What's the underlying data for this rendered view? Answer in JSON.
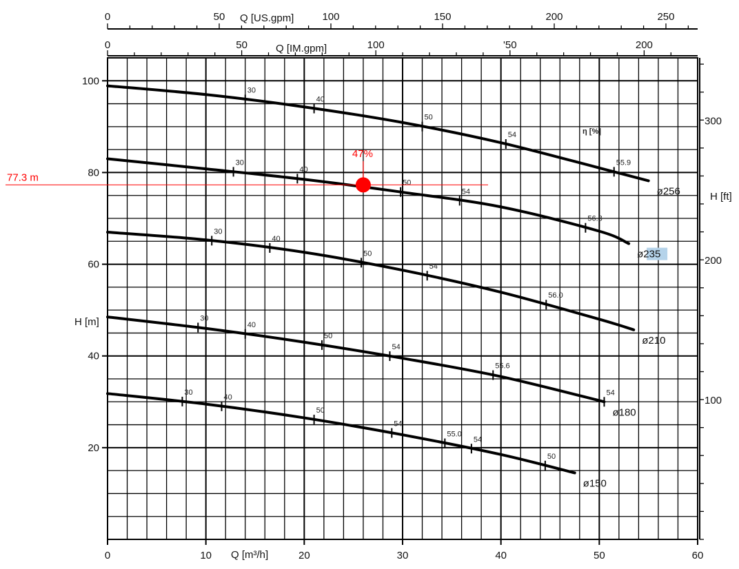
{
  "chart_data": {
    "type": "line",
    "title": "",
    "xlabel": "Q [m³/h]",
    "ylabel": "H [m]",
    "xlim": [
      0,
      60
    ],
    "ylim": [
      0,
      105
    ],
    "grid": true,
    "x_ticks": [
      "0",
      "10",
      "20",
      "30",
      "40",
      "50",
      "60"
    ],
    "y_ticks": [
      "20",
      "40",
      "60",
      "80",
      "100"
    ],
    "top_axis_us": {
      "label": "Q [US.gpm]",
      "ticks": [
        "0",
        "50",
        "100",
        "150",
        "200",
        "250"
      ]
    },
    "top_axis_im": {
      "label": "Q [IM.gpm]",
      "ticks": [
        "0",
        "50",
        "100",
        "'50",
        "200"
      ]
    },
    "right_axis": {
      "label": "H [ft]",
      "ticks": [
        "100",
        "200",
        "300"
      ]
    },
    "efficiency_label": "η [%]",
    "series": [
      {
        "name": "ø256",
        "x": [
          0,
          10,
          20,
          30,
          40,
          50,
          55
        ],
        "y": [
          98.9,
          97.0,
          94.3,
          90.9,
          86.5,
          81.0,
          78.2
        ],
        "eff_points": [
          {
            "x": 14,
            "label": "30"
          },
          {
            "x": 21,
            "label": "40"
          },
          {
            "x": 32,
            "label": "50"
          },
          {
            "x": 40.5,
            "label": "54"
          },
          {
            "x": 51.5,
            "label": "55.9"
          }
        ]
      },
      {
        "name": "ø235",
        "x": [
          0,
          10,
          20,
          30,
          40,
          50,
          53
        ],
        "y": [
          83.0,
          80.8,
          78.5,
          75.7,
          72.5,
          67.2,
          64.5
        ],
        "eff_points": [
          {
            "x": 12.8,
            "label": "30"
          },
          {
            "x": 19.3,
            "label": "40"
          },
          {
            "x": 29.8,
            "label": "50"
          },
          {
            "x": 35.8,
            "label": "54"
          },
          {
            "x": 48.6,
            "label": "56.8"
          }
        ]
      },
      {
        "name": "ø210",
        "x": [
          0,
          10,
          20,
          30,
          40,
          50,
          53.5
        ],
        "y": [
          67.0,
          65.3,
          62.6,
          58.7,
          53.9,
          48.0,
          45.7
        ],
        "eff_points": [
          {
            "x": 10.6,
            "label": "30"
          },
          {
            "x": 16.5,
            "label": "40"
          },
          {
            "x": 25.8,
            "label": "50"
          },
          {
            "x": 32.5,
            "label": "54"
          },
          {
            "x": 44.6,
            "label": "56.0"
          }
        ]
      },
      {
        "name": "ø180",
        "x": [
          0,
          10,
          20,
          30,
          40,
          50.5
        ],
        "y": [
          48.5,
          46.0,
          43.0,
          39.5,
          35.5,
          30.0
        ],
        "eff_points": [
          {
            "x": 9.2,
            "label": "30"
          },
          {
            "x": 14,
            "label": "40"
          },
          {
            "x": 21.8,
            "label": "50"
          },
          {
            "x": 28.7,
            "label": "54"
          },
          {
            "x": 39.2,
            "label": "55.6"
          },
          {
            "x": 50.5,
            "label": "54"
          }
        ]
      },
      {
        "name": "ø150",
        "x": [
          0,
          10,
          20,
          30,
          40,
          47.5
        ],
        "y": [
          31.8,
          29.5,
          26.5,
          22.8,
          18.5,
          14.5
        ],
        "eff_points": [
          {
            "x": 7.6,
            "label": "30"
          },
          {
            "x": 11.6,
            "label": "40"
          },
          {
            "x": 21,
            "label": "50"
          },
          {
            "x": 28.9,
            "label": "54"
          },
          {
            "x": 34.3,
            "label": "55.0"
          },
          {
            "x": 37,
            "label": "54"
          },
          {
            "x": 44.5,
            "label": "50"
          }
        ]
      }
    ],
    "annotations": [
      {
        "type": "operating_point",
        "x": 26,
        "y": 77.3,
        "color": "#ff0000",
        "head_label": "77.3 m",
        "eff_label": "47%"
      }
    ]
  },
  "colors": {
    "curve": "#000000",
    "grid": "#000000",
    "marker": "#ff0000",
    "highlight": "#b5d3ea"
  }
}
